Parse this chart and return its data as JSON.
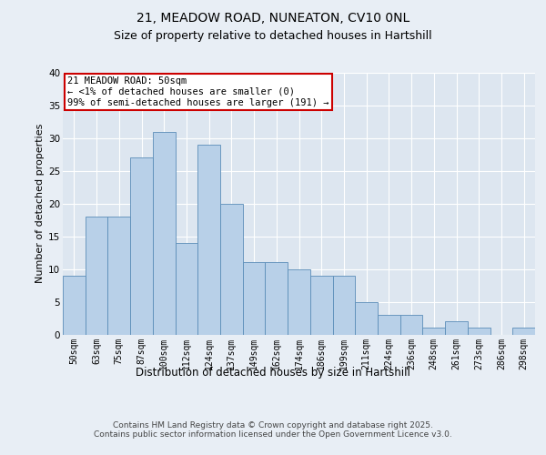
{
  "title1": "21, MEADOW ROAD, NUNEATON, CV10 0NL",
  "title2": "Size of property relative to detached houses in Hartshill",
  "xlabel": "Distribution of detached houses by size in Hartshill",
  "ylabel": "Number of detached properties",
  "categories": [
    "50sqm",
    "63sqm",
    "75sqm",
    "87sqm",
    "100sqm",
    "112sqm",
    "124sqm",
    "137sqm",
    "149sqm",
    "162sqm",
    "174sqm",
    "186sqm",
    "199sqm",
    "211sqm",
    "224sqm",
    "236sqm",
    "248sqm",
    "261sqm",
    "273sqm",
    "286sqm",
    "298sqm"
  ],
  "values": [
    9,
    18,
    18,
    27,
    31,
    14,
    29,
    20,
    11,
    11,
    10,
    9,
    9,
    5,
    3,
    3,
    1,
    2,
    1,
    0,
    1
  ],
  "bar_color": "#b8d0e8",
  "bar_edge_color": "#5b8db8",
  "annotation_text": "21 MEADOW ROAD: 50sqm\n← <1% of detached houses are smaller (0)\n99% of semi-detached houses are larger (191) →",
  "annotation_box_facecolor": "#ffffff",
  "annotation_box_edgecolor": "#cc0000",
  "ylim": [
    0,
    40
  ],
  "yticks": [
    0,
    5,
    10,
    15,
    20,
    25,
    30,
    35,
    40
  ],
  "bg_color": "#e8eef5",
  "plot_bg_color": "#dde6f0",
  "grid_color": "#ffffff",
  "footer": "Contains HM Land Registry data © Crown copyright and database right 2025.\nContains public sector information licensed under the Open Government Licence v3.0.",
  "title1_fontsize": 10,
  "title2_fontsize": 9,
  "xlabel_fontsize": 8.5,
  "ylabel_fontsize": 8,
  "tick_fontsize": 7,
  "annotation_fontsize": 7.5,
  "footer_fontsize": 6.5
}
